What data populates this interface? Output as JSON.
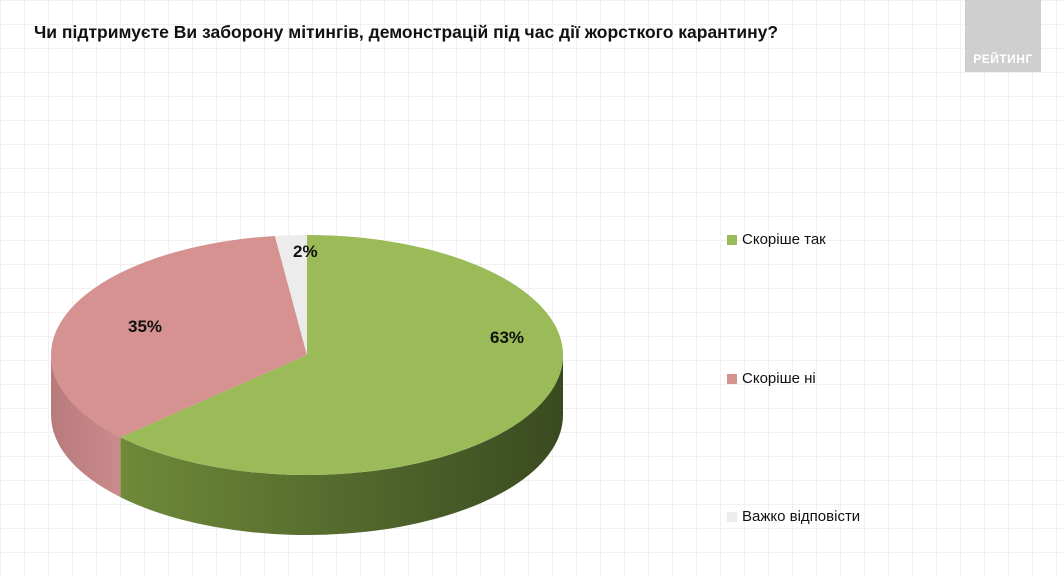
{
  "chart_data": {
    "type": "pie",
    "title": "Чи підтримуєте Ви заборону мітингів, демонстрацій під час дії жорсткого карантину?",
    "categories": [
      "Скоріше так",
      "Скоріше ні",
      "Важко відповісти"
    ],
    "values": [
      63,
      35,
      2
    ],
    "data_labels": [
      "63%",
      "35%",
      "2%"
    ],
    "colors": [
      "#9bbb59",
      "#d69191",
      "#ececec"
    ],
    "side_colors": [
      [
        "#6f8a3a",
        "#3a4a20"
      ],
      [
        "#b87a7a",
        "#c98b8b"
      ],
      [
        "#cccccc",
        "#bbbbbb"
      ]
    ],
    "legend_position": "right",
    "style": "3d"
  },
  "watermark": "РЕЙТИНГ"
}
